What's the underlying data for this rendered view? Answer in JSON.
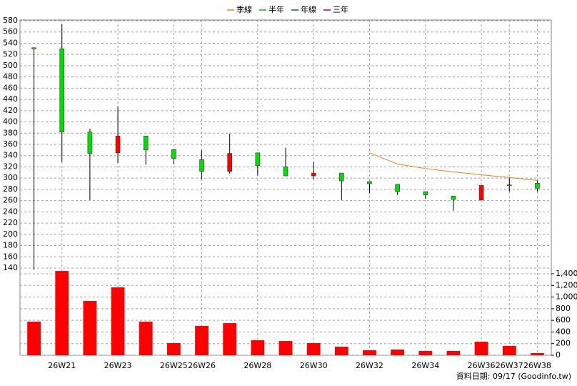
{
  "chart_data": {
    "type": "candlestick",
    "categories": [
      null,
      "26W21",
      null,
      "26W23",
      null,
      "26W25",
      "26W26",
      null,
      "26W28",
      null,
      "26W30",
      null,
      "26W32",
      null,
      "26W34",
      null,
      "26W36",
      "26W37",
      "26W38"
    ],
    "open": [
      532,
      530,
      382,
      345,
      375,
      351,
      333,
      312,
      345,
      320,
      304,
      309,
      294,
      289,
      276,
      268,
      261,
      288,
      291
    ],
    "high": [
      532,
      574,
      388,
      427,
      375,
      351,
      350,
      379,
      345,
      354,
      329,
      309,
      294,
      289,
      276,
      268,
      287,
      301,
      296
    ],
    "low": [
      137,
      329,
      261,
      327,
      324,
      325,
      298,
      308,
      305,
      304,
      298,
      261,
      273,
      270,
      263,
      242,
      261,
      276,
      276
    ],
    "close": [
      530,
      382,
      344,
      375,
      350,
      335,
      312,
      344,
      322,
      304,
      309,
      295,
      290,
      276,
      270,
      262,
      287,
      288,
      282
    ],
    "up_color": "#ff0000",
    "down_color": "#00e000",
    "series": [
      {
        "name": "季線",
        "color": "#f08020",
        "values": [
          null,
          null,
          null,
          null,
          null,
          null,
          null,
          null,
          null,
          null,
          null,
          null,
          345,
          325,
          317,
          311,
          306,
          301,
          296
        ]
      },
      {
        "name": "半年",
        "color": "#00c000",
        "values": [
          null,
          null,
          null,
          null,
          null,
          null,
          null,
          null,
          null,
          null,
          null,
          null,
          null,
          null,
          null,
          null,
          null,
          null,
          null
        ]
      },
      {
        "name": "年線",
        "color": "#0050ff",
        "values": [
          null,
          null,
          null,
          null,
          null,
          null,
          null,
          null,
          null,
          null,
          null,
          null,
          null,
          null,
          null,
          null,
          null,
          null,
          null
        ]
      },
      {
        "name": "三年",
        "color": "#e00000",
        "values": [
          null,
          null,
          null,
          null,
          null,
          null,
          null,
          null,
          null,
          null,
          null,
          null,
          null,
          null,
          null,
          null,
          null,
          null,
          null
        ]
      }
    ],
    "ylim": [
      140,
      580
    ],
    "yticks": [
      140,
      160,
      180,
      200,
      220,
      240,
      260,
      280,
      300,
      320,
      340,
      360,
      380,
      400,
      420,
      440,
      460,
      480,
      500,
      520,
      540,
      560,
      580
    ],
    "volume": {
      "color": "#ff0000",
      "values": [
        577,
        1448,
        933,
        1166,
        577,
        209,
        503,
        552,
        258,
        245,
        209,
        147,
        86,
        98,
        74,
        74,
        233,
        160,
        37
      ],
      "ylim": [
        0,
        1400
      ],
      "yticks": [
        0,
        200,
        400,
        600,
        800,
        {
          "value": 1000,
          "label": "1,000"
        },
        {
          "value": 1200,
          "label": "1,200"
        },
        {
          "value": 1400,
          "label": "1,400"
        }
      ]
    },
    "grid": true,
    "footer": "資料日期: 09/17  (Goodinfo.tw)"
  }
}
